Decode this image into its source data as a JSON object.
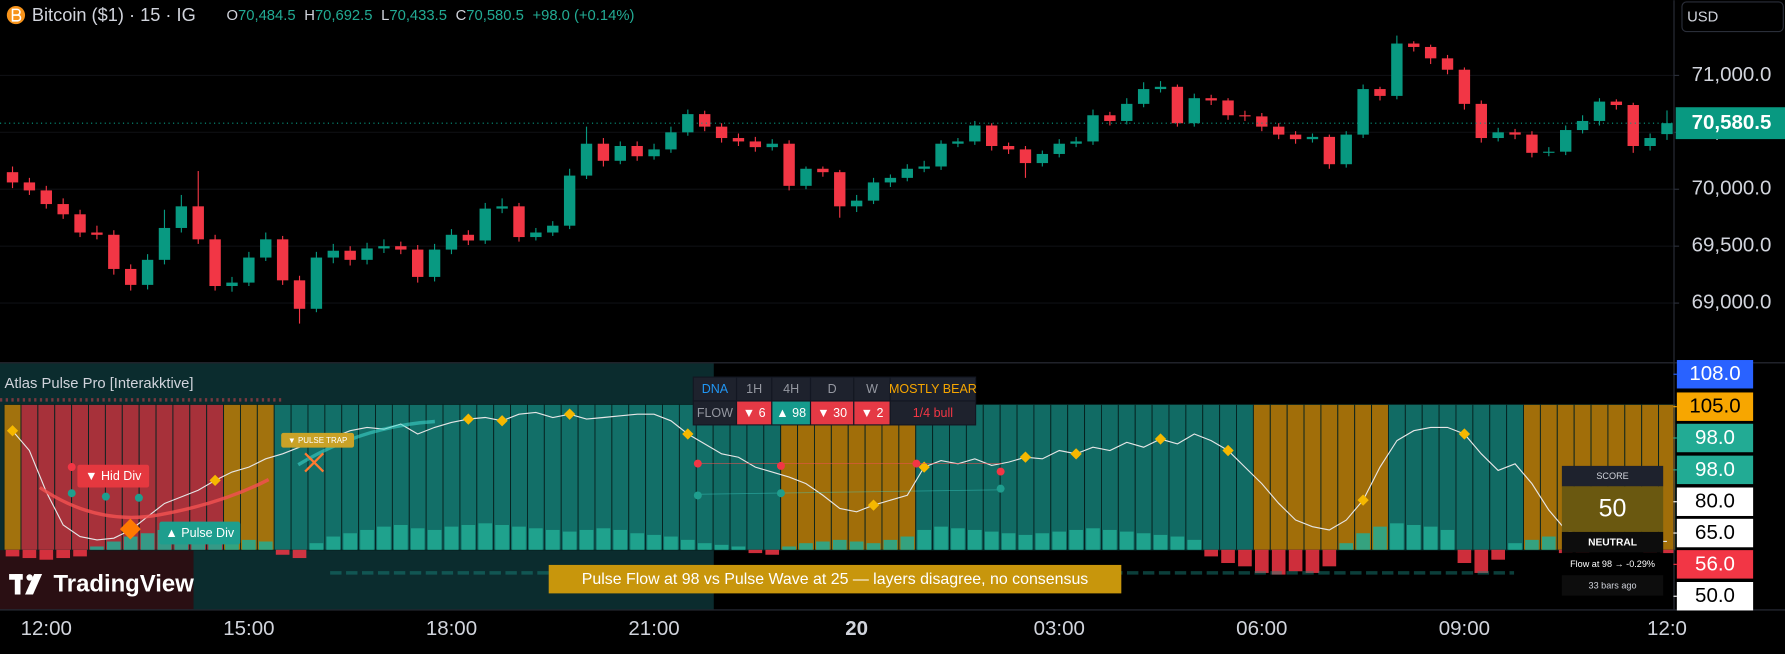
{
  "header": {
    "symbol": "Bitcoin ($1) · 15 · IG",
    "ohlc": [
      {
        "key": "O",
        "value": "70,484.5"
      },
      {
        "key": "H",
        "value": "70,692.5"
      },
      {
        "key": "L",
        "value": "70,433.5"
      },
      {
        "key": "C",
        "value": "70,580.5"
      }
    ],
    "change": "+98.0 (+0.14%)",
    "currency": "USD"
  },
  "logo": "TradingView",
  "chart_data": [
    {
      "type": "candlestick",
      "categories": [
        null,
        null,
        "12:00",
        null,
        null,
        null,
        null,
        null,
        null,
        null,
        null,
        null,
        null,
        null,
        "15:00",
        null,
        null,
        null,
        null,
        null,
        null,
        null,
        null,
        null,
        null,
        null,
        "18:00",
        null,
        null,
        null,
        null,
        null,
        null,
        null,
        null,
        null,
        null,
        null,
        "21:00",
        null,
        null,
        null,
        null,
        null,
        null,
        null,
        null,
        null,
        null,
        null,
        "20",
        null,
        null,
        null,
        null,
        null,
        null,
        null,
        null,
        null,
        null,
        null,
        "03:00",
        null,
        null,
        null,
        null,
        null,
        null,
        null,
        null,
        null,
        null,
        null,
        "06:00",
        null,
        null,
        null,
        null,
        null,
        null,
        null,
        null,
        null,
        null,
        null,
        "09:00",
        null,
        null,
        null,
        null,
        null,
        null,
        null,
        null,
        null,
        null,
        null,
        "12:0"
      ],
      "open": [
        70150,
        70060,
        69990,
        69870,
        69780,
        69620,
        69600,
        69300,
        69160,
        69380,
        69660,
        69850,
        69560,
        69150,
        69180,
        69400,
        69560,
        69200,
        68950,
        69400,
        69460,
        69380,
        69480,
        69500,
        69470,
        69230,
        69470,
        69600,
        69550,
        69830,
        69850,
        69580,
        69620,
        69680,
        70120,
        70400,
        70250,
        70380,
        70290,
        70350,
        70500,
        70660,
        70550,
        70450,
        70420,
        70370,
        70400,
        70030,
        70180,
        70150,
        69850,
        69900,
        70060,
        70100,
        70180,
        70200,
        70400,
        70420,
        70560,
        70380,
        70350,
        70230,
        70310,
        70400,
        70420,
        70650,
        70600,
        70750,
        70880,
        70900,
        70580,
        70800,
        70780,
        70650,
        70640,
        70550,
        70480,
        70440,
        70460,
        70220,
        70480,
        70880,
        70820,
        71280,
        71250,
        71150,
        71050,
        70750,
        70450,
        70500,
        70480,
        70320,
        70330,
        70520,
        70600,
        70770,
        70740,
        70380,
        70484.5
      ],
      "high": [
        70200,
        70100,
        70030,
        69920,
        69820,
        69680,
        69640,
        69340,
        69430,
        69820,
        69950,
        70160,
        69600,
        69230,
        69450,
        69620,
        69590,
        69240,
        69450,
        69520,
        69500,
        69530,
        69560,
        69540,
        69510,
        69520,
        69650,
        69640,
        69880,
        69920,
        69880,
        69660,
        69720,
        70180,
        70550,
        70450,
        70420,
        70420,
        70400,
        70550,
        70700,
        70690,
        70580,
        70490,
        70460,
        70440,
        70430,
        70200,
        70200,
        70170,
        69950,
        70100,
        70130,
        70220,
        70250,
        70430,
        70450,
        70600,
        70580,
        70410,
        70380,
        70340,
        70440,
        70460,
        70700,
        70680,
        70800,
        70940,
        70950,
        70920,
        70840,
        70830,
        70800,
        70690,
        70670,
        70580,
        70510,
        70490,
        70480,
        70510,
        70920,
        70900,
        71350,
        71300,
        71270,
        71180,
        71070,
        70780,
        70540,
        70530,
        70510,
        70370,
        70560,
        70650,
        70800,
        70790,
        70760,
        70490,
        70692.5
      ],
      "low": [
        70010,
        69950,
        69830,
        69740,
        69580,
        69560,
        69250,
        69110,
        69120,
        69340,
        69620,
        69520,
        69110,
        69100,
        69150,
        69370,
        69160,
        68820,
        68920,
        69350,
        69330,
        69340,
        69440,
        69430,
        69180,
        69190,
        69430,
        69510,
        69520,
        69790,
        69540,
        69550,
        69590,
        69650,
        70090,
        70200,
        70220,
        70250,
        70260,
        70320,
        70470,
        70510,
        70410,
        70380,
        70330,
        70340,
        69990,
        70000,
        70110,
        69750,
        69800,
        69870,
        70020,
        70070,
        70150,
        70170,
        70370,
        70390,
        70340,
        70310,
        70100,
        70200,
        70280,
        70370,
        70390,
        70560,
        70570,
        70720,
        70850,
        70550,
        70550,
        70740,
        70610,
        70600,
        70510,
        70440,
        70400,
        70410,
        70180,
        70190,
        70450,
        70780,
        70790,
        71210,
        71100,
        71010,
        70700,
        70410,
        70420,
        70440,
        70280,
        70290,
        70300,
        70490,
        70560,
        70700,
        70320,
        70340,
        70433.5
      ],
      "close": [
        70060,
        69990,
        69870,
        69780,
        69620,
        69600,
        69300,
        69160,
        69380,
        69660,
        69850,
        69560,
        69150,
        69180,
        69400,
        69560,
        69200,
        68950,
        69400,
        69460,
        69380,
        69480,
        69500,
        69470,
        69230,
        69470,
        69600,
        69550,
        69830,
        69850,
        69580,
        69620,
        69680,
        70120,
        70400,
        70250,
        70380,
        70290,
        70350,
        70500,
        70660,
        70550,
        70450,
        70420,
        70370,
        70400,
        70030,
        70180,
        70150,
        69850,
        69900,
        70060,
        70100,
        70180,
        70200,
        70400,
        70420,
        70560,
        70380,
        70350,
        70230,
        70310,
        70400,
        70420,
        70650,
        70600,
        70750,
        70880,
        70900,
        70580,
        70800,
        70780,
        70650,
        70640,
        70550,
        70480,
        70440,
        70460,
        70220,
        70480,
        70880,
        70820,
        71280,
        71250,
        71150,
        71050,
        70750,
        70450,
        70500,
        70480,
        70320,
        70330,
        70520,
        70600,
        70770,
        70740,
        70380,
        70450,
        70580.5
      ],
      "up_color": "#089981",
      "down_color": "#f23645",
      "ylim": [
        68480,
        71660
      ],
      "yticks": [
        {
          "value": 69000,
          "label": "69,000.0"
        },
        {
          "value": 69500,
          "label": "69,500.0"
        },
        {
          "value": 70000,
          "label": "70,000.0"
        },
        {
          "value": 70500,
          "label": "70,500.0"
        },
        {
          "value": 71000,
          "label": "71,000.0"
        }
      ],
      "last_price": {
        "value": 70580.5,
        "label": "70,580.5"
      },
      "last_price_color": "#089981"
    },
    {
      "type": "oscillator",
      "title": "Atlas Pulse Pro [Interakktive]",
      "ylim": [
        -36,
        112
      ],
      "line": {
        "color": "#e6e6e6",
        "values": [
          72,
          60,
          35,
          15,
          8,
          6,
          7,
          12,
          20,
          28,
          32,
          36,
          42,
          47,
          50,
          55,
          58,
          62,
          66,
          68,
          72,
          74,
          73,
          76,
          70,
          74,
          77,
          79,
          80,
          78,
          82,
          83,
          80,
          82,
          79,
          80,
          81,
          82,
          82,
          78,
          70,
          64,
          58,
          56,
          50,
          47,
          44,
          40,
          33,
          25,
          23,
          27,
          30,
          33,
          50,
          54,
          52,
          55,
          51,
          53,
          56,
          55,
          60,
          58,
          62,
          60,
          65,
          62,
          67,
          64,
          70,
          66,
          60,
          50,
          40,
          28,
          18,
          14,
          12,
          18,
          30,
          50,
          66,
          72,
          74,
          74,
          70,
          58,
          48,
          52,
          40,
          24,
          12,
          8,
          6,
          5,
          6,
          5,
          5
        ]
      },
      "markers": {
        "color": "#f5b800",
        "values": [
          72,
          null,
          null,
          null,
          null,
          null,
          null,
          null,
          null,
          null,
          null,
          null,
          42,
          null,
          null,
          null,
          null,
          null,
          null,
          null,
          null,
          null,
          null,
          null,
          null,
          null,
          null,
          79,
          null,
          78,
          null,
          null,
          null,
          82,
          null,
          null,
          null,
          null,
          null,
          null,
          70,
          null,
          null,
          null,
          null,
          null,
          null,
          null,
          null,
          null,
          null,
          27,
          null,
          null,
          50,
          null,
          null,
          null,
          null,
          null,
          56,
          null,
          null,
          58,
          null,
          null,
          null,
          null,
          67,
          null,
          null,
          null,
          60,
          null,
          null,
          null,
          null,
          null,
          null,
          null,
          30,
          null,
          null,
          null,
          null,
          null,
          70,
          null,
          null,
          null,
          null,
          null,
          null,
          null,
          null,
          null,
          null,
          null,
          null
        ]
      },
      "histogram": {
        "up_color": "#22ab94",
        "down_color": "#f23645",
        "values": [
          -4,
          -5,
          -6,
          -5,
          -4,
          2,
          5,
          8,
          10,
          12,
          14,
          13,
          10,
          8,
          6,
          5,
          -3,
          -5,
          4,
          8,
          10,
          12,
          14,
          15,
          13,
          12,
          14,
          15,
          16,
          15,
          14,
          13,
          12,
          11,
          12,
          13,
          12,
          10,
          9,
          8,
          6,
          4,
          3,
          2,
          -2,
          -3,
          2,
          4,
          5,
          6,
          5,
          4,
          6,
          8,
          12,
          14,
          13,
          12,
          11,
          10,
          9,
          10,
          11,
          12,
          13,
          12,
          11,
          10,
          9,
          8,
          6,
          -4,
          -8,
          -10,
          -14,
          -15,
          -13,
          -14,
          -10,
          4,
          10,
          14,
          16,
          15,
          14,
          12,
          -8,
          -14,
          -6,
          4,
          6,
          8,
          -2,
          -4,
          6,
          8,
          5,
          -3,
          -2
        ]
      },
      "zone_colors": [
        "#b37a0a",
        "#b8323c",
        "#b8323c",
        "#b8323c",
        "#b8323c",
        "#b8323c",
        "#b8323c",
        "#b8323c",
        "#b8323c",
        "#b8323c",
        "#b8323c",
        "#b8323c",
        "#b8323c",
        "#b37a0a",
        "#b37a0a",
        "#b37a0a",
        "#13776f",
        "#13776f",
        "#13776f",
        "#13776f",
        "#13776f",
        "#13776f",
        "#13776f",
        "#13776f",
        "#13776f",
        "#13776f",
        "#13776f",
        "#13776f",
        "#13776f",
        "#13776f",
        "#13776f",
        "#13776f",
        "#13776f",
        "#13776f",
        "#13776f",
        "#13776f",
        "#13776f",
        "#13776f",
        "#13776f",
        "#13776f",
        "#13776f",
        "#13776f",
        "#13776f",
        "#13776f",
        "#13776f",
        "#13776f",
        "#b37a0a",
        "#b37a0a",
        "#b37a0a",
        "#b37a0a",
        "#b37a0a",
        "#b37a0a",
        "#b37a0a",
        "#b37a0a",
        "#13776f",
        "#13776f",
        "#13776f",
        "#13776f",
        "#13776f",
        "#13776f",
        "#13776f",
        "#13776f",
        "#13776f",
        "#13776f",
        "#13776f",
        "#13776f",
        "#13776f",
        "#13776f",
        "#13776f",
        "#13776f",
        "#13776f",
        "#13776f",
        "#13776f",
        "#13776f",
        "#b37a0a",
        "#b37a0a",
        "#b37a0a",
        "#b37a0a",
        "#b37a0a",
        "#b37a0a",
        "#b37a0a",
        "#b37a0a",
        "#13776f",
        "#13776f",
        "#13776f",
        "#13776f",
        "#13776f",
        "#13776f",
        "#13776f",
        "#13776f",
        "#b37a0a",
        "#b37a0a",
        "#b37a0a",
        "#b37a0a",
        "#b37a0a",
        "#b37a0a",
        "#b37a0a",
        "#b37a0a",
        "#b37a0a"
      ],
      "axis_labels": [
        {
          "value": 108,
          "label": "108.0",
          "color": "#2962ff",
          "text_color": "#ffffff"
        },
        {
          "value": 105,
          "label": "105.0",
          "color": "#f7a600",
          "text_color": "#000000"
        },
        {
          "value": 98,
          "label": "98.0",
          "color": "#22ab94",
          "text_color": "#ffffff"
        },
        {
          "value": 98,
          "label": "98.0",
          "color": "#22ab94",
          "text_color": "#ffffff"
        },
        {
          "value": 80,
          "label": "80.0",
          "color": "#ffffff",
          "text_color": "#000000"
        },
        {
          "value": 65,
          "label": "65.0",
          "color": "#ffffff",
          "text_color": "#000000"
        },
        {
          "value": 56,
          "label": "56.0",
          "color": "#f23645",
          "text_color": "#ffffff"
        },
        {
          "value": 50,
          "label": "50.0",
          "color": "#ffffff",
          "text_color": "#000000"
        }
      ],
      "annotations": [
        "▼ Hid Div",
        "▲ Pulse Div",
        "▼ PULSE TRAP"
      ]
    }
  ],
  "dna_table": {
    "rows": [
      [
        "DNA",
        "1H",
        "4H",
        "D",
        "W",
        "MOSTLY BEAR"
      ],
      [
        "FLOW",
        "▼ 6",
        "▲ 98",
        "▼ 30",
        "▼ 2",
        "1/4 bull"
      ]
    ]
  },
  "banner": "Pulse Flow at 98 vs Pulse Wave at 25 — layers disagree, no consensus",
  "score_panel": {
    "title": "SCORE",
    "score": "50",
    "state": "NEUTRAL",
    "detail": "Flow at 98 → -0.29%",
    "age": "33 bars ago"
  }
}
